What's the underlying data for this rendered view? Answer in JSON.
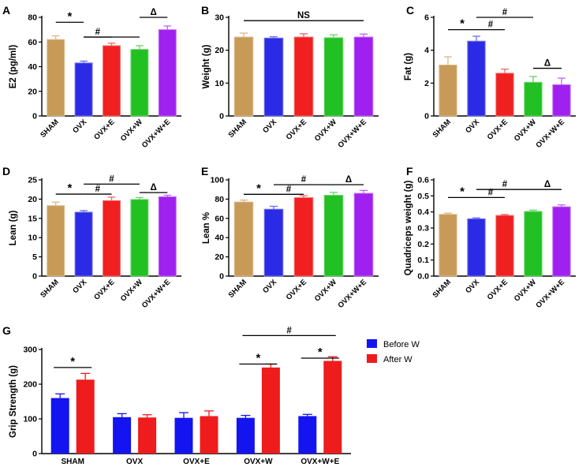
{
  "figure_title": "",
  "colors": {
    "sham": "#C89A58",
    "ovx": "#2B2BE6",
    "ovx_e": "#F02020",
    "ovx_w": "#22C022",
    "ovx_we": "#A020F0",
    "before": "#1414F0",
    "after": "#EE1C1C"
  },
  "chart_data": [
    {
      "panel": "A",
      "type": "bar",
      "title": "",
      "xlabel": "",
      "ylabel": "E2 (pg/ml)",
      "ylim": [
        0,
        80
      ],
      "yticks": [
        "0",
        "20",
        "40",
        "60",
        "80"
      ],
      "categories": [
        "SHAM",
        "OVX",
        "OVX+E",
        "OVX+W",
        "OVX+W+E"
      ],
      "values": [
        62,
        43,
        57,
        54,
        70
      ],
      "errors": [
        3,
        1.5,
        2,
        3,
        3
      ],
      "colors": [
        "sham",
        "ovx",
        "ovx_e",
        "ovx_w",
        "ovx_we"
      ],
      "annotations": [
        {
          "from": 0,
          "to": 1,
          "y": 76,
          "text": "*"
        },
        {
          "from": 1,
          "to": 2,
          "y": 64,
          "text": "#"
        },
        {
          "from": 1,
          "to": 3,
          "y": 64,
          "text": ""
        },
        {
          "from": 3,
          "to": 4,
          "y": 80,
          "text": "Δ"
        }
      ]
    },
    {
      "panel": "B",
      "type": "bar",
      "title": "",
      "xlabel": "",
      "ylabel": "Weight (g)",
      "ylim": [
        0,
        30
      ],
      "yticks": [
        "0",
        "10",
        "20",
        "30"
      ],
      "categories": [
        "SHAM",
        "OVX",
        "OVX+E",
        "OVX+W",
        "OVX+W+E"
      ],
      "values": [
        24,
        23.7,
        24,
        23.8,
        24
      ],
      "errors": [
        1.2,
        0.4,
        1,
        0.9,
        0.9
      ],
      "colors": [
        "sham",
        "ovx",
        "ovx_e",
        "ovx_w",
        "ovx_we"
      ],
      "annotations": [
        {
          "from": 0,
          "to": 4,
          "y": 29,
          "text": "NS"
        }
      ]
    },
    {
      "panel": "C",
      "type": "bar",
      "title": "",
      "xlabel": "",
      "ylabel": "Fat (g)",
      "ylim": [
        0,
        6
      ],
      "yticks": [
        "0",
        "2",
        "4",
        "6"
      ],
      "categories": [
        "SHAM",
        "OVX",
        "OVX+E",
        "OVX+W",
        "OVX+W+E"
      ],
      "values": [
        3.1,
        4.55,
        2.6,
        2.05,
        1.9
      ],
      "errors": [
        0.5,
        0.3,
        0.25,
        0.35,
        0.4
      ],
      "colors": [
        "sham",
        "ovx",
        "ovx_e",
        "ovx_w",
        "ovx_we"
      ],
      "annotations": [
        {
          "from": 0,
          "to": 1,
          "y": 5.25,
          "text": "*"
        },
        {
          "from": 1,
          "to": 2,
          "y": 5.25,
          "text": "#"
        },
        {
          "from": 1,
          "to": 3,
          "y": 6.0,
          "text": "#"
        },
        {
          "from": 3,
          "to": 4,
          "y": 2.9,
          "text": "Δ"
        }
      ]
    },
    {
      "panel": "D",
      "type": "bar",
      "title": "",
      "xlabel": "",
      "ylabel": "Lean (g)",
      "ylim": [
        0,
        25
      ],
      "yticks": [
        "0",
        "5",
        "10",
        "15",
        "20",
        "25"
      ],
      "categories": [
        "SHAM",
        "OVX",
        "OVX+E",
        "OVX+W",
        "OVX+W+E"
      ],
      "values": [
        18.3,
        16.6,
        19.6,
        19.9,
        20.6
      ],
      "errors": [
        0.9,
        0.4,
        0.9,
        0.5,
        0.4
      ],
      "colors": [
        "sham",
        "ovx",
        "ovx_e",
        "ovx_w",
        "ovx_we"
      ],
      "annotations": [
        {
          "from": 0,
          "to": 1,
          "y": 21.3,
          "text": "*"
        },
        {
          "from": 1,
          "to": 2,
          "y": 21.3,
          "text": "#"
        },
        {
          "from": 1,
          "to": 3,
          "y": 23.9,
          "text": "#"
        },
        {
          "from": 3,
          "to": 4,
          "y": 21.7,
          "text": "Δ"
        }
      ]
    },
    {
      "panel": "E",
      "type": "bar",
      "title": "",
      "xlabel": "",
      "ylabel": "Lean %",
      "ylim": [
        0,
        100
      ],
      "yticks": [
        "0",
        "20",
        "40",
        "60",
        "80",
        "100"
      ],
      "categories": [
        "SHAM",
        "OVX",
        "OVX+E",
        "OVX+W",
        "OVX+W+E"
      ],
      "values": [
        77,
        69.5,
        81.5,
        84,
        86
      ],
      "errors": [
        2,
        3,
        2,
        3,
        3
      ],
      "colors": [
        "sham",
        "ovx",
        "ovx_e",
        "ovx_w",
        "ovx_we"
      ],
      "annotations": [
        {
          "from": 0,
          "to": 1,
          "y": 85,
          "text": "*"
        },
        {
          "from": 1,
          "to": 2,
          "y": 85,
          "text": "#"
        },
        {
          "from": 1,
          "to": 3,
          "y": 95,
          "text": "#"
        },
        {
          "from": 3,
          "to": 4,
          "y": 95,
          "text": "Δ"
        }
      ]
    },
    {
      "panel": "F",
      "type": "bar",
      "title": "",
      "xlabel": "",
      "ylabel": "Quadriceps weight (g)",
      "ylim": [
        0,
        0.6
      ],
      "yticks": [
        "0.0",
        "0.1",
        "0.2",
        "0.3",
        "0.4",
        "0.5",
        "0.6"
      ],
      "categories": [
        "SHAM",
        "OVX",
        "OVX+E",
        "OVX+W",
        "OVX+W+E"
      ],
      "values": [
        0.385,
        0.357,
        0.378,
        0.403,
        0.432
      ],
      "errors": [
        0.008,
        0.006,
        0.006,
        0.008,
        0.012
      ],
      "colors": [
        "sham",
        "ovx",
        "ovx_e",
        "ovx_w",
        "ovx_we"
      ],
      "annotations": [
        {
          "from": 0,
          "to": 1,
          "y": 0.49,
          "text": "*"
        },
        {
          "from": 1,
          "to": 2,
          "y": 0.49,
          "text": "#"
        },
        {
          "from": 1,
          "to": 3,
          "y": 0.54,
          "text": "#"
        },
        {
          "from": 3,
          "to": 4,
          "y": 0.54,
          "text": "Δ"
        }
      ]
    },
    {
      "panel": "G",
      "type": "bar",
      "title": "",
      "xlabel": "",
      "ylabel": "Grip Strength (g)",
      "ylim": [
        0,
        300
      ],
      "yticks": [
        "0",
        "100",
        "200",
        "300"
      ],
      "categories": [
        "SHAM",
        "OVX",
        "OVX+E",
        "OVX+W",
        "OVX+W+E"
      ],
      "series": [
        {
          "name": "Before W",
          "color": "before",
          "values": [
            160,
            105,
            103,
            103,
            108
          ],
          "errors": [
            12,
            10,
            15,
            7,
            5
          ]
        },
        {
          "name": "After W",
          "color": "after",
          "values": [
            213,
            104,
            108,
            248,
            267
          ],
          "errors": [
            18,
            8,
            15,
            10,
            12
          ]
        }
      ],
      "legend": "top-right",
      "annotations": [
        {
          "group": 0,
          "y": 248,
          "text": "*"
        },
        {
          "group": 3,
          "y": 258,
          "text": "*"
        },
        {
          "group": 4,
          "y": 275,
          "text": "*"
        },
        {
          "span": [
            3,
            4
          ],
          "y": 340,
          "text": "#"
        }
      ]
    }
  ]
}
